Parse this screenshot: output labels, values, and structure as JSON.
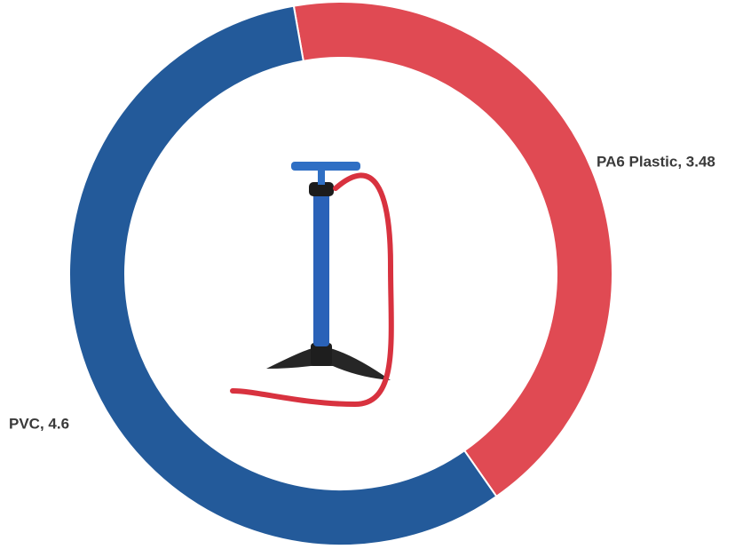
{
  "chart_data": {
    "type": "donut",
    "values": [
      3.48,
      4.6
    ],
    "value_labels": [
      "PA6 Plastic, 3.48",
      "PVC, 4.6"
    ],
    "colors": [
      "#e04a53",
      "#235a9a"
    ]
  }
}
